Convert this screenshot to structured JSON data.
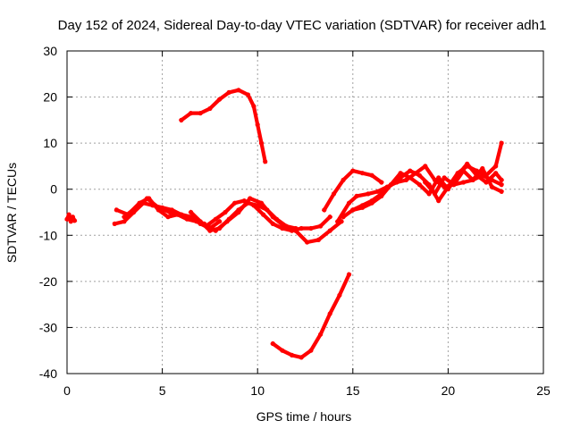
{
  "chart_data": {
    "type": "scatter",
    "title": "Day 152 of 2024, Sidereal Day-to-day VTEC variation (SDTVAR) for receiver adh1",
    "xlabel": "GPS time / hours",
    "ylabel": "SDTVAR / TECUs",
    "xlim": [
      0,
      25
    ],
    "ylim": [
      -40,
      30
    ],
    "xticks": [
      0,
      5,
      10,
      15,
      20,
      25
    ],
    "yticks": [
      -40,
      -30,
      -20,
      -10,
      0,
      10,
      20,
      30
    ],
    "grid": true,
    "marker_color": "#ff0000",
    "series": [
      {
        "x": [
          0.0,
          0.1,
          0.2,
          0.3,
          0.4
        ],
        "y": [
          -6.5,
          -5.5,
          -7.0,
          -6.0,
          -6.8
        ]
      },
      {
        "x": [
          2.5,
          3.0,
          3.5,
          4.0,
          4.5,
          5.0,
          5.5,
          6.0,
          6.5,
          7.0,
          7.5,
          8.0
        ],
        "y": [
          -7.5,
          -7.0,
          -5.0,
          -3.0,
          -3.5,
          -4.0,
          -4.5,
          -5.5,
          -6.0,
          -7.5,
          -8.5,
          -7.0
        ]
      },
      {
        "x": [
          2.6,
          3.2,
          3.8,
          4.3,
          4.8,
          5.3,
          5.8,
          6.3,
          6.8,
          7.3,
          7.8,
          8.3,
          8.8,
          9.3,
          9.8,
          10.3,
          10.8,
          11.3,
          11.8,
          12.3,
          12.8,
          13.3,
          13.8
        ],
        "y": [
          -4.5,
          -5.5,
          -3.0,
          -2.0,
          -4.5,
          -6.0,
          -5.5,
          -6.5,
          -7.0,
          -8.0,
          -6.5,
          -5.0,
          -3.0,
          -2.5,
          -3.5,
          -5.5,
          -7.5,
          -8.5,
          -9.0,
          -8.5,
          -8.5,
          -8.0,
          -6.0
        ]
      },
      {
        "x": [
          3.0,
          3.6,
          4.2,
          4.8,
          5.4,
          6.0,
          6.6,
          7.2,
          7.8,
          8.4,
          9.0,
          9.6,
          10.2,
          10.8,
          11.4,
          12.0,
          12.6,
          13.2,
          13.8,
          14.4
        ],
        "y": [
          -6.0,
          -4.0,
          -2.0,
          -4.0,
          -5.0,
          -5.5,
          -6.5,
          -7.5,
          -9.0,
          -7.0,
          -5.0,
          -2.0,
          -3.0,
          -6.0,
          -8.0,
          -9.0,
          -11.5,
          -11.0,
          -9.0,
          -7.0
        ]
      },
      {
        "x": [
          6.0,
          6.5,
          7.0,
          7.5,
          8.0,
          8.5,
          9.0,
          9.5,
          9.8,
          10.0,
          10.2,
          10.4
        ],
        "y": [
          15.0,
          16.5,
          16.5,
          17.5,
          19.5,
          21.0,
          21.5,
          20.5,
          18.0,
          14.0,
          10.0,
          6.0
        ]
      },
      {
        "x": [
          6.5,
          7.0,
          7.5,
          8.0,
          8.5,
          9.0,
          9.5,
          10.0,
          10.5,
          11.0,
          11.5,
          12.0
        ],
        "y": [
          -5.0,
          -7.0,
          -9.0,
          -8.5,
          -6.5,
          -4.5,
          -3.0,
          -3.5,
          -4.5,
          -6.5,
          -8.0,
          -8.5
        ]
      },
      {
        "x": [
          10.8,
          11.3,
          11.8,
          12.3,
          12.8,
          13.3,
          13.8,
          14.3,
          14.8
        ],
        "y": [
          -33.5,
          -35.0,
          -36.0,
          -36.5,
          -35.0,
          -31.5,
          -27.0,
          -23.0,
          -18.5
        ]
      },
      {
        "x": [
          13.5,
          14.0,
          14.5,
          15.0,
          15.5,
          16.0,
          16.5
        ],
        "y": [
          -4.5,
          -1.0,
          2.0,
          4.0,
          3.5,
          3.0,
          1.5
        ]
      },
      {
        "x": [
          14.2,
          14.8,
          15.2,
          15.8,
          16.3,
          16.8,
          17.3,
          17.8,
          18.3,
          18.8,
          19.3,
          19.8,
          20.3,
          20.8,
          21.3,
          21.8,
          22.3,
          22.8
        ],
        "y": [
          -7.0,
          -3.0,
          -1.5,
          -1.0,
          -0.5,
          0.5,
          1.5,
          2.0,
          3.5,
          5.0,
          2.0,
          0.5,
          1.0,
          1.5,
          2.0,
          3.0,
          2.0,
          1.0
        ]
      },
      {
        "x": [
          14.5,
          15.0,
          15.5,
          16.0,
          16.5,
          17.0,
          17.5,
          18.0,
          18.5,
          19.0,
          19.5,
          20.0,
          20.5,
          21.0,
          21.5,
          22.0,
          22.5,
          22.8
        ],
        "y": [
          -6.0,
          -4.5,
          -4.0,
          -3.0,
          -1.5,
          1.0,
          3.5,
          2.5,
          1.0,
          -1.0,
          2.5,
          0.0,
          3.0,
          5.5,
          3.0,
          1.5,
          3.5,
          2.0
        ]
      },
      {
        "x": [
          15.0,
          15.5,
          16.0,
          16.5,
          17.0,
          17.5,
          18.0,
          18.5,
          19.0,
          19.5,
          20.0,
          20.5,
          21.0,
          21.5,
          22.0,
          22.5,
          22.8
        ],
        "y": [
          -4.5,
          -3.5,
          -2.5,
          -1.0,
          1.0,
          2.5,
          4.0,
          3.0,
          1.0,
          -2.5,
          0.5,
          3.5,
          5.0,
          4.0,
          3.0,
          5.0,
          10.0
        ]
      },
      {
        "x": [
          18.8,
          19.3,
          19.8,
          20.3,
          20.8,
          21.3,
          21.8,
          22.3,
          22.8
        ],
        "y": [
          1.5,
          -1.0,
          2.5,
          1.0,
          4.0,
          2.0,
          4.5,
          0.5,
          -0.5
        ]
      }
    ]
  }
}
